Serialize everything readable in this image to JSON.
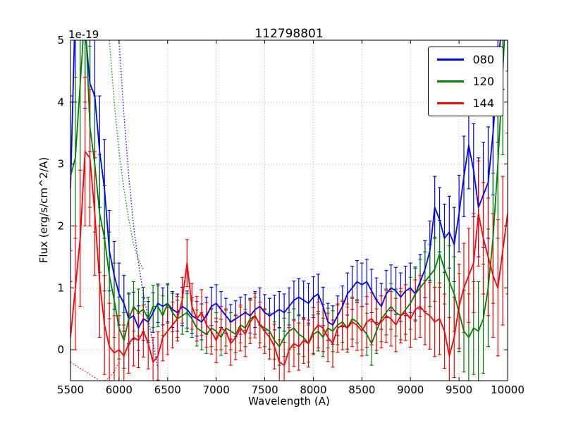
{
  "figure": {
    "background": "#ffffff"
  },
  "chart_data": {
    "type": "line",
    "title": "112798801",
    "xlabel": "Wavelength (A)",
    "ylabel": "Flux (erg/s/cm^2/A)",
    "y_offset_label": "1e-19",
    "grid": true,
    "legend_pos": "upper right",
    "xlim": [
      5500,
      10000
    ],
    "ylim": [
      -0.5,
      5.0
    ],
    "xticks": [
      5500,
      6000,
      6500,
      7000,
      7500,
      8000,
      8500,
      9000,
      9500,
      10000
    ],
    "yticks": [
      0,
      1,
      2,
      3,
      4,
      5
    ],
    "x_start": 5500,
    "x_step": 50,
    "grid_color": "#b0b0b0",
    "series": [
      {
        "name": "080",
        "color": "#0000ff",
        "values": [
          2.6,
          5.6,
          6.5,
          5.2,
          4.3,
          4.1,
          3.2,
          2.6,
          1.6,
          1.2,
          0.9,
          0.75,
          0.5,
          0.55,
          0.35,
          0.5,
          0.45,
          0.6,
          0.75,
          0.7,
          0.75,
          0.65,
          0.6,
          0.7,
          0.65,
          0.55,
          0.5,
          0.45,
          0.55,
          0.7,
          0.75,
          0.65,
          0.55,
          0.45,
          0.5,
          0.55,
          0.6,
          0.55,
          0.65,
          0.7,
          0.6,
          0.55,
          0.6,
          0.65,
          0.6,
          0.7,
          0.8,
          0.85,
          0.8,
          0.75,
          0.85,
          0.9,
          0.7,
          0.45,
          0.4,
          0.55,
          0.7,
          0.9,
          1.0,
          1.1,
          1.05,
          1.1,
          0.95,
          0.8,
          0.7,
          0.9,
          1.0,
          0.95,
          0.85,
          0.95,
          1.0,
          0.9,
          1.1,
          1.3,
          1.6,
          2.3,
          2.1,
          1.8,
          1.9,
          1.7,
          2.2,
          2.8,
          3.3,
          2.9,
          2.3,
          2.5,
          2.7,
          3.5,
          4.5,
          5.5,
          6.0
        ],
        "err": [
          1.5,
          1.6,
          1.5,
          1.3,
          1.1,
          1.0,
          0.9,
          0.8,
          0.65,
          0.55,
          0.5,
          0.45,
          0.4,
          0.38,
          0.36,
          0.35,
          0.33,
          0.32,
          0.31,
          0.3,
          0.3,
          0.29,
          0.3,
          0.31,
          0.3,
          0.29,
          0.28,
          0.29,
          0.3,
          0.31,
          0.3,
          0.29,
          0.28,
          0.28,
          0.29,
          0.3,
          0.29,
          0.28,
          0.29,
          0.3,
          0.29,
          0.28,
          0.28,
          0.29,
          0.3,
          0.3,
          0.31,
          0.3,
          0.31,
          0.32,
          0.33,
          0.32,
          0.31,
          0.3,
          0.31,
          0.32,
          0.33,
          0.34,
          0.35,
          0.34,
          0.35,
          0.36,
          0.35,
          0.36,
          0.37,
          0.38,
          0.37,
          0.38,
          0.39,
          0.4,
          0.4,
          0.42,
          0.44,
          0.46,
          0.48,
          0.5,
          0.52,
          0.55,
          0.58,
          0.6,
          0.62,
          0.65,
          0.7,
          0.75,
          0.8,
          0.85,
          0.9,
          1.0,
          1.15,
          1.3,
          1.5
        ]
      },
      {
        "name": "120",
        "color": "#008000",
        "values": [
          2.8,
          3.1,
          4.3,
          5.5,
          3.6,
          3.0,
          2.2,
          1.8,
          1.2,
          0.8,
          0.35,
          0.15,
          0.5,
          0.7,
          0.6,
          0.65,
          0.5,
          0.7,
          0.7,
          0.55,
          0.75,
          0.6,
          0.5,
          0.55,
          0.6,
          0.5,
          0.35,
          0.3,
          0.25,
          0.35,
          0.3,
          0.2,
          0.35,
          0.3,
          0.25,
          0.4,
          0.35,
          0.5,
          0.55,
          0.4,
          0.35,
          0.3,
          0.15,
          0.05,
          0.2,
          0.3,
          0.35,
          0.25,
          0.2,
          0.1,
          0.25,
          0.3,
          0.2,
          0.35,
          0.3,
          0.4,
          0.45,
          0.35,
          0.5,
          0.45,
          0.35,
          0.25,
          0.1,
          0.3,
          0.5,
          0.6,
          0.7,
          0.6,
          0.55,
          0.65,
          0.75,
          0.9,
          1.0,
          1.1,
          1.2,
          1.3,
          1.55,
          1.3,
          1.1,
          0.9,
          0.6,
          0.3,
          0.2,
          0.35,
          0.3,
          0.5,
          1.0,
          1.8,
          3.0,
          4.5,
          6.0
        ],
        "err": [
          1.2,
          1.3,
          1.4,
          1.5,
          1.3,
          1.1,
          0.95,
          0.85,
          0.7,
          0.6,
          0.5,
          0.45,
          0.42,
          0.4,
          0.38,
          0.36,
          0.35,
          0.34,
          0.33,
          0.32,
          0.32,
          0.31,
          0.3,
          0.3,
          0.31,
          0.3,
          0.29,
          0.3,
          0.31,
          0.3,
          0.3,
          0.29,
          0.29,
          0.3,
          0.3,
          0.29,
          0.3,
          0.31,
          0.3,
          0.29,
          0.3,
          0.29,
          0.3,
          0.3,
          0.31,
          0.3,
          0.31,
          0.32,
          0.31,
          0.3,
          0.31,
          0.32,
          0.31,
          0.32,
          0.33,
          0.32,
          0.33,
          0.34,
          0.33,
          0.34,
          0.35,
          0.34,
          0.35,
          0.36,
          0.37,
          0.36,
          0.37,
          0.38,
          0.39,
          0.4,
          0.42,
          0.44,
          0.46,
          0.48,
          0.5,
          0.52,
          0.54,
          0.56,
          0.58,
          0.6,
          0.63,
          0.66,
          0.7,
          0.75,
          0.8,
          0.88,
          0.95,
          1.05,
          1.2,
          1.35,
          1.5
        ]
      },
      {
        "name": "144",
        "color": "#ff0000",
        "values": [
          0.2,
          1.0,
          1.8,
          3.2,
          3.1,
          2.2,
          1.1,
          0.4,
          0.05,
          -0.05,
          0.0,
          -0.1,
          0.1,
          0.2,
          0.15,
          0.3,
          0.1,
          -0.2,
          -0.1,
          0.2,
          0.3,
          0.4,
          0.5,
          0.8,
          1.4,
          0.7,
          0.5,
          0.6,
          0.4,
          0.3,
          0.15,
          0.35,
          0.3,
          0.1,
          0.2,
          0.35,
          0.25,
          0.45,
          0.55,
          0.4,
          0.3,
          0.2,
          0.05,
          -0.2,
          -0.25,
          0.0,
          0.1,
          0.05,
          0.15,
          0.1,
          0.3,
          0.4,
          0.35,
          0.2,
          0.1,
          0.35,
          0.4,
          0.35,
          0.45,
          0.4,
          0.3,
          0.45,
          0.5,
          0.4,
          0.45,
          0.55,
          0.5,
          0.4,
          0.55,
          0.6,
          0.5,
          0.65,
          0.7,
          0.6,
          0.55,
          0.45,
          0.5,
          0.3,
          -0.1,
          0.2,
          0.7,
          1.0,
          1.2,
          1.4,
          2.2,
          1.8,
          1.5,
          1.2,
          1.0,
          1.6,
          2.2
        ],
        "err": [
          0.9,
          1.0,
          1.1,
          1.2,
          1.1,
          1.0,
          0.9,
          0.8,
          0.7,
          0.6,
          0.55,
          0.5,
          0.48,
          0.46,
          0.44,
          0.42,
          0.41,
          0.4,
          0.39,
          0.38,
          0.38,
          0.37,
          0.36,
          0.37,
          0.38,
          0.37,
          0.36,
          0.37,
          0.36,
          0.37,
          0.36,
          0.35,
          0.36,
          0.35,
          0.36,
          0.37,
          0.36,
          0.35,
          0.36,
          0.37,
          0.36,
          0.35,
          0.36,
          0.36,
          0.37,
          0.36,
          0.37,
          0.38,
          0.37,
          0.38,
          0.38,
          0.37,
          0.38,
          0.39,
          0.38,
          0.39,
          0.4,
          0.39,
          0.4,
          0.41,
          0.4,
          0.41,
          0.42,
          0.41,
          0.42,
          0.43,
          0.44,
          0.43,
          0.44,
          0.45,
          0.46,
          0.48,
          0.5,
          0.52,
          0.54,
          0.56,
          0.58,
          0.6,
          0.62,
          0.65,
          0.68,
          0.72,
          0.76,
          0.8,
          0.85,
          0.9,
          0.95,
          1.0,
          1.1,
          1.2,
          1.3
        ]
      }
    ],
    "dotted_series": [
      {
        "name": "080-dotted",
        "color": "#0000ff",
        "x": [
          5950,
          6000,
          6050,
          6100,
          6150,
          6200,
          6250,
          6300,
          6350,
          6400
        ],
        "values": [
          6.0,
          5.0,
          3.8,
          2.8,
          2.0,
          1.4,
          0.9,
          0.5,
          0.1,
          -0.3
        ]
      },
      {
        "name": "120-dotted",
        "color": "#008000",
        "x": [
          5850,
          5900,
          5950,
          6000,
          6050,
          6100,
          6150,
          6200,
          6250
        ],
        "values": [
          6.0,
          5.0,
          4.0,
          3.2,
          2.6,
          2.1,
          1.7,
          1.45,
          1.3
        ]
      },
      {
        "name": "144-dotted",
        "color": "#ff0000",
        "x": [
          5500,
          5550,
          5600,
          5650,
          5700,
          5750,
          5800,
          5850,
          5900,
          5950,
          6000
        ],
        "values": [
          -0.2,
          -0.25,
          -0.3,
          -0.35,
          -0.4,
          -0.45,
          -0.5,
          -0.5,
          -0.45,
          -0.35,
          -0.2
        ]
      }
    ]
  }
}
